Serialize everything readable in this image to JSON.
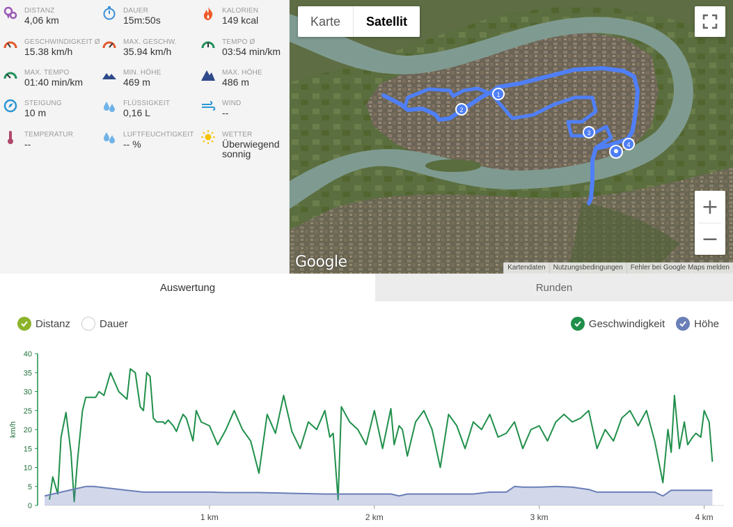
{
  "stats": [
    {
      "label": "DISTANZ",
      "value": "4,06 km",
      "icon": "location-pins-icon",
      "color": "#9b59b6"
    },
    {
      "label": "DAUER",
      "value": "15m:50s",
      "icon": "stopwatch-icon",
      "color": "#3a8fd8"
    },
    {
      "label": "KALORIEN",
      "value": "149 kcal",
      "icon": "flame-icon",
      "color": "#f0592a"
    },
    {
      "label": "GESCHWINDIGKEIT Ø",
      "value": "15.38 km/h",
      "icon": "speedometer-icon",
      "color": "#e3582b"
    },
    {
      "label": "MAX. GESCHW.",
      "value": "35.94 km/h",
      "icon": "speedometer-max-icon",
      "color": "#e3582b"
    },
    {
      "label": "TEMPO Ø",
      "value": "03:54 min/km",
      "icon": "pace-gauge-icon",
      "color": "#1f8f5a"
    },
    {
      "label": "MAX. TEMPO",
      "value": "01:40 min/km",
      "icon": "pace-gauge-max-icon",
      "color": "#1f8f5a"
    },
    {
      "label": "MIN. HÖHE",
      "value": "469 m",
      "icon": "mountain-low-icon",
      "color": "#2f4a8a"
    },
    {
      "label": "MAX. HÖHE",
      "value": "486 m",
      "icon": "mountain-high-icon",
      "color": "#2f4a8a"
    },
    {
      "label": "STEIGUNG",
      "value": "10 m",
      "icon": "compass-icon",
      "color": "#2a96d4"
    },
    {
      "label": "FLÜSSIGKEIT",
      "value": "0,16 L",
      "icon": "water-drops-icon",
      "color": "#6fb3e8"
    },
    {
      "label": "WIND",
      "value": "--",
      "icon": "wind-icon",
      "color": "#2a96d4"
    },
    {
      "label": "TEMPERATUR",
      "value": "--",
      "icon": "thermometer-icon",
      "color": "#b0486a"
    },
    {
      "label": "LUFTFEUCHTIGKEIT",
      "value": "-- %",
      "icon": "humidity-drops-icon",
      "color": "#6fb3e8"
    },
    {
      "label": "WETTER",
      "value": "Überwiegend\nsonnig",
      "icon": "sun-icon",
      "color": "#f5c400"
    }
  ],
  "map": {
    "type_buttons": [
      {
        "label": "Karte",
        "active": false
      },
      {
        "label": "Satellit",
        "active": true
      }
    ],
    "logo": "Google",
    "attribution": [
      "Kartendaten",
      "Nutzungsbedingungen",
      "Fehler bei Google Maps melden"
    ],
    "zoom_in": "+",
    "zoom_out": "−",
    "markers": [
      "1",
      "2",
      "3",
      "4"
    ],
    "route_color": "#4f7ff7"
  },
  "tabs": [
    {
      "label": "Auswertung",
      "active": true
    },
    {
      "label": "Runden",
      "active": false
    }
  ],
  "legend": {
    "left": [
      {
        "label": "Distanz",
        "checked": true,
        "color": "#8cb32b"
      },
      {
        "label": "Dauer",
        "checked": false,
        "color": "#ffffff"
      }
    ],
    "right": [
      {
        "label": "Geschwindigkeit",
        "checked": true,
        "color": "#1f8f4a"
      },
      {
        "label": "Höhe",
        "checked": true,
        "color": "#6a7fb8"
      }
    ]
  },
  "chart_data": {
    "type": "line",
    "ylabel": "km/h",
    "ylim": [
      0,
      40
    ],
    "yticks": [
      "0",
      "5",
      "10",
      "15",
      "20",
      "25",
      "30",
      "35",
      "40"
    ],
    "xlim": [
      0,
      4.12
    ],
    "xticks": [
      {
        "x": 1,
        "label": "1 km"
      },
      {
        "x": 2,
        "label": "2 km"
      },
      {
        "x": 3,
        "label": "3 km"
      },
      {
        "x": 4,
        "label": "4 km"
      }
    ],
    "series": [
      {
        "name": "Geschwindigkeit",
        "color": "#1f8f4a",
        "type": "line",
        "x": [
          0.03,
          0.05,
          0.06,
          0.08,
          0.1,
          0.13,
          0.16,
          0.18,
          0.2,
          0.23,
          0.25,
          0.28,
          0.31,
          0.33,
          0.36,
          0.4,
          0.45,
          0.5,
          0.52,
          0.55,
          0.58,
          0.6,
          0.62,
          0.64,
          0.66,
          0.68,
          0.7,
          0.72,
          0.73,
          0.75,
          0.78,
          0.8,
          0.82,
          0.84,
          0.86,
          0.88,
          0.9,
          0.92,
          0.95,
          1.0,
          1.05,
          1.1,
          1.15,
          1.2,
          1.25,
          1.3,
          1.35,
          1.4,
          1.45,
          1.5,
          1.55,
          1.6,
          1.65,
          1.7,
          1.73,
          1.75,
          1.78,
          1.8,
          1.85,
          1.9,
          1.95,
          2.0,
          2.05,
          2.1,
          2.12,
          2.15,
          2.17,
          2.2,
          2.25,
          2.3,
          2.35,
          2.4,
          2.45,
          2.5,
          2.55,
          2.6,
          2.65,
          2.7,
          2.75,
          2.8,
          2.85,
          2.9,
          2.95,
          3.0,
          3.05,
          3.1,
          3.15,
          3.2,
          3.25,
          3.3,
          3.35,
          3.4,
          3.45,
          3.5,
          3.55,
          3.6,
          3.65,
          3.7,
          3.75,
          3.78,
          3.8,
          3.82,
          3.85,
          3.88,
          3.9,
          3.93,
          3.95,
          3.98,
          4.0,
          4.03,
          4.05
        ],
        "values": [
          1.5,
          7.5,
          6,
          3,
          18,
          24.5,
          14,
          1,
          12,
          25,
          28.5,
          28.5,
          28.5,
          30,
          29,
          35,
          30,
          28,
          36,
          35,
          26,
          25,
          35,
          34,
          23,
          22,
          22,
          22,
          21.5,
          22.5,
          21,
          19.5,
          22,
          24,
          23,
          20,
          17,
          25,
          22,
          21,
          16,
          20,
          25,
          20,
          17,
          8.5,
          24,
          19,
          29,
          19.5,
          15,
          22,
          20,
          25,
          18,
          19,
          1.5,
          26,
          22,
          20,
          16,
          25,
          15,
          25.5,
          16,
          21,
          20,
          13,
          22,
          25,
          20,
          10,
          24,
          21,
          15,
          22,
          20,
          24,
          18,
          19,
          22,
          15,
          20,
          21,
          17,
          22,
          24,
          22,
          23,
          25,
          15,
          20,
          17,
          23,
          25,
          21,
          25,
          17,
          6,
          20,
          14,
          29,
          15,
          22,
          16,
          18,
          19,
          18,
          25,
          22,
          11.5
        ]
      },
      {
        "name": "Höhe",
        "color": "#6a7fb8",
        "type": "area",
        "x": [
          0,
          0.1,
          0.2,
          0.25,
          0.3,
          0.4,
          0.5,
          0.6,
          0.7,
          0.8,
          0.9,
          1.0,
          1.1,
          1.2,
          1.3,
          1.4,
          1.5,
          1.6,
          1.7,
          1.8,
          1.9,
          2.0,
          2.1,
          2.15,
          2.2,
          2.3,
          2.4,
          2.5,
          2.6,
          2.7,
          2.8,
          2.85,
          2.9,
          3.0,
          3.1,
          3.2,
          3.3,
          3.35,
          3.4,
          3.5,
          3.6,
          3.7,
          3.75,
          3.8,
          3.9,
          4.0,
          4.05
        ],
        "values": [
          2.5,
          3.5,
          4.5,
          5,
          5,
          4.5,
          4,
          3.5,
          3.5,
          3.5,
          3.5,
          3.5,
          3.4,
          3.4,
          3.4,
          3.3,
          3.2,
          3.1,
          3,
          3,
          3,
          3,
          3,
          2.5,
          3,
          3,
          3,
          3,
          3,
          3.5,
          3.5,
          5,
          4.8,
          4.8,
          5,
          4.8,
          4.2,
          3.5,
          3.5,
          3.5,
          3.5,
          3.5,
          2.5,
          4,
          4,
          4,
          4
        ]
      }
    ]
  }
}
